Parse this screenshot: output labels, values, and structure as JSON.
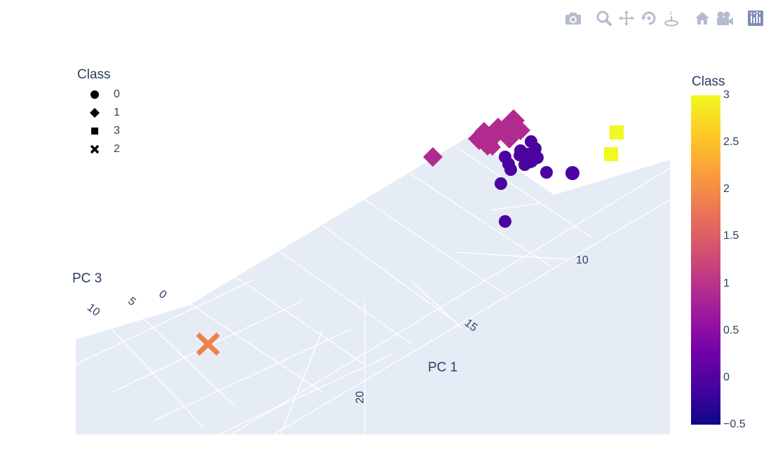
{
  "modebar": {
    "buttons": [
      {
        "icon": "camera-icon"
      },
      {
        "icon": "zoom-icon"
      },
      {
        "icon": "pan-icon"
      },
      {
        "icon": "orbit-rotation-icon"
      },
      {
        "icon": "turntable-rotation-icon"
      },
      {
        "icon": "home-icon"
      },
      {
        "icon": "camera-view-icon"
      },
      {
        "icon": "plotly-logo-icon"
      }
    ]
  },
  "legend": {
    "title": "Class",
    "items": [
      {
        "label": "0",
        "symbol": "circle"
      },
      {
        "label": "1",
        "symbol": "diamond"
      },
      {
        "label": "3",
        "symbol": "square"
      },
      {
        "label": "2",
        "symbol": "x"
      }
    ]
  },
  "colorbar": {
    "title": "Class",
    "ticks": [
      "3",
      "2.5",
      "2",
      "1.5",
      "1",
      "0.5",
      "0",
      "−0.5"
    ],
    "range": [
      -0.5,
      3
    ],
    "colorscale": "plasma"
  },
  "chart_data": {
    "type": "scatter3d",
    "scene": {
      "xaxis_title": "PC 1",
      "zaxis_title": "PC 3",
      "pc1_ticks": [
        "10",
        "15",
        "20"
      ],
      "pc3_ticks": [
        "10",
        "5",
        "0"
      ]
    },
    "series": [
      {
        "name": "0",
        "symbol": "circle",
        "color": "#4c02a1",
        "count": 22
      },
      {
        "name": "1",
        "symbol": "diamond",
        "color": "#b12a90",
        "count": 14
      },
      {
        "name": "3",
        "symbol": "square",
        "color": "#f0f921",
        "count": 2
      },
      {
        "name": "2",
        "symbol": "x",
        "color": "#ef8149",
        "count": 1
      }
    ]
  }
}
